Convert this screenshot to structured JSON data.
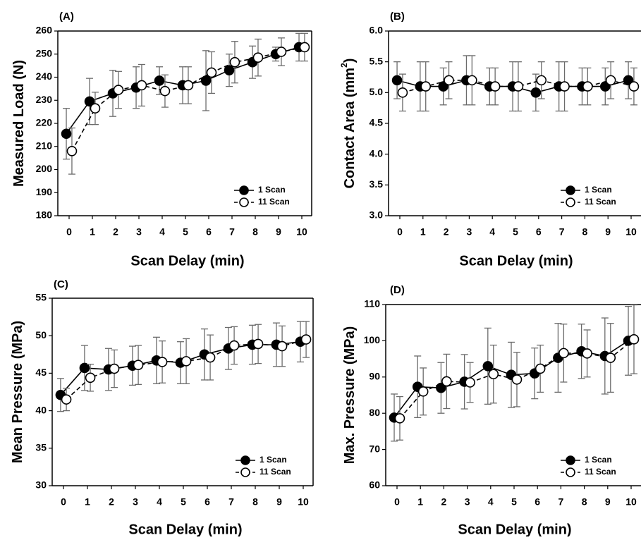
{
  "chart_data": [
    {
      "panel": "(A)",
      "type": "line",
      "xlabel": "Scan Delay (min)",
      "ylabel": "Measured Load (N)",
      "ylabel_sup": "",
      "ylabel_tail": "",
      "x": [
        0,
        1,
        2,
        3,
        4,
        5,
        6,
        7,
        8,
        9,
        10
      ],
      "ylim": [
        180,
        260
      ],
      "yticks": [
        180,
        190,
        200,
        210,
        220,
        230,
        240,
        250,
        260
      ],
      "ytick_labels": [
        "180",
        "190",
        "200",
        "210",
        "220",
        "230",
        "240",
        "250",
        "260"
      ],
      "legend_position": "bottom-right",
      "series": [
        {
          "name": "1 Scan",
          "marker": "filled-circle",
          "line": "solid",
          "values": [
            215.5,
            229.5,
            233,
            235.5,
            238.5,
            236.5,
            238.5,
            243,
            246.5,
            250,
            253
          ],
          "errors": [
            11,
            10,
            10,
            9,
            6,
            8,
            13,
            7,
            7,
            3,
            6
          ]
        },
        {
          "name": "11 Scan",
          "marker": "open-circle",
          "line": "dashed",
          "values": [
            208,
            226.5,
            234.5,
            236.5,
            234,
            236.5,
            242,
            246.5,
            248.5,
            251,
            253
          ],
          "errors": [
            10,
            7,
            8,
            9,
            7,
            8,
            9,
            9,
            8,
            6,
            6
          ]
        }
      ]
    },
    {
      "panel": "(B)",
      "type": "line",
      "xlabel": "Scan Delay (min)",
      "ylabel": "Contact Area (mm",
      "ylabel_sup": "2",
      "ylabel_tail": ")",
      "x": [
        0,
        1,
        2,
        3,
        4,
        5,
        6,
        7,
        8,
        9,
        10
      ],
      "ylim": [
        3.0,
        6.0
      ],
      "yticks": [
        3.0,
        3.5,
        4.0,
        4.5,
        5.0,
        5.5,
        6.0
      ],
      "ytick_labels": [
        "3.0",
        "3.5",
        "4.0",
        "4.5",
        "5.0",
        "5.5",
        "6.0"
      ],
      "legend_position": "bottom-right",
      "series": [
        {
          "name": "1 Scan",
          "marker": "filled-circle",
          "line": "solid",
          "values": [
            5.2,
            5.1,
            5.1,
            5.2,
            5.1,
            5.1,
            5.0,
            5.1,
            5.1,
            5.1,
            5.2
          ],
          "errors": [
            0.3,
            0.4,
            0.3,
            0.4,
            0.3,
            0.4,
            0.3,
            0.4,
            0.3,
            0.3,
            0.3
          ]
        },
        {
          "name": "11 Scan",
          "marker": "open-circle",
          "line": "dashed",
          "values": [
            5.0,
            5.1,
            5.2,
            5.2,
            5.1,
            5.1,
            5.2,
            5.1,
            5.1,
            5.2,
            5.1
          ],
          "errors": [
            0.3,
            0.4,
            0.3,
            0.4,
            0.3,
            0.4,
            0.3,
            0.4,
            0.3,
            0.3,
            0.3
          ]
        }
      ]
    },
    {
      "panel": "(C)",
      "type": "line",
      "xlabel": "Scan Delay (min)",
      "ylabel": "Mean Pressure (MPa)",
      "ylabel_sup": "",
      "ylabel_tail": "",
      "x": [
        0,
        1,
        2,
        3,
        4,
        5,
        6,
        7,
        8,
        9,
        10
      ],
      "ylim": [
        30,
        55
      ],
      "yticks": [
        30,
        35,
        40,
        45,
        50,
        55
      ],
      "ytick_labels": [
        "30",
        "35",
        "40",
        "45",
        "50",
        "55"
      ],
      "legend_position": "bottom-right",
      "series": [
        {
          "name": "1 Scan",
          "marker": "filled-circle",
          "line": "solid",
          "values": [
            42.1,
            45.7,
            45.5,
            46.0,
            46.7,
            46.4,
            47.5,
            48.3,
            48.8,
            48.8,
            49.2
          ],
          "errors": [
            2.2,
            3.0,
            2.8,
            2.6,
            3.1,
            2.8,
            3.4,
            2.8,
            2.6,
            2.9,
            2.7
          ]
        },
        {
          "name": "11 Scan",
          "marker": "open-circle",
          "line": "dashed",
          "values": [
            41.5,
            44.4,
            45.6,
            46.1,
            46.5,
            46.6,
            47.1,
            48.7,
            48.9,
            48.6,
            49.5
          ],
          "errors": [
            1.5,
            1.8,
            2.5,
            2.6,
            2.8,
            3.0,
            3.0,
            2.5,
            2.6,
            2.7,
            2.4
          ]
        }
      ]
    },
    {
      "panel": "(D)",
      "type": "line",
      "xlabel": "Scan Delay (min)",
      "ylabel": "Max. Pressure (MPa)",
      "ylabel_sup": "",
      "ylabel_tail": "",
      "x": [
        0,
        1,
        2,
        3,
        4,
        5,
        6,
        7,
        8,
        9,
        10
      ],
      "ylim": [
        60,
        110
      ],
      "yticks": [
        60,
        70,
        80,
        90,
        100,
        110
      ],
      "ytick_labels": [
        "60",
        "70",
        "80",
        "90",
        "100",
        "110"
      ],
      "legend_position": "bottom-right",
      "series": [
        {
          "name": "1 Scan",
          "marker": "filled-circle",
          "line": "solid",
          "values": [
            78.8,
            87.3,
            87.0,
            88.7,
            93.0,
            90.6,
            91.0,
            95.3,
            97.1,
            95.8,
            100.0
          ],
          "errors": [
            6.5,
            8.5,
            7.0,
            7.5,
            10.5,
            9.0,
            7.0,
            9.5,
            7.5,
            10.5,
            9.5
          ]
        },
        {
          "name": "11 Scan",
          "marker": "open-circle",
          "line": "dashed",
          "values": [
            78.6,
            86.0,
            88.8,
            88.5,
            90.8,
            89.3,
            92.3,
            96.6,
            96.5,
            95.3,
            100.4
          ],
          "errors": [
            6.0,
            6.5,
            7.5,
            5.5,
            8.0,
            7.5,
            6.5,
            8.0,
            6.5,
            9.5,
            9.5
          ]
        }
      ]
    }
  ]
}
